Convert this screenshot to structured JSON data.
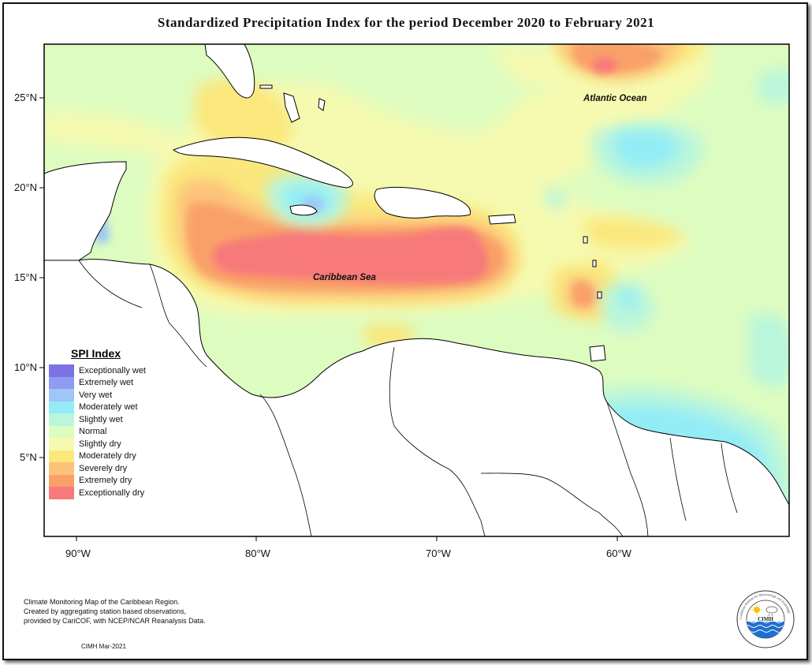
{
  "title": "Standardized Precipitation Index for the period December 2020 to February 2021",
  "lat_labels": [
    "25°N",
    "20°N",
    "15°N",
    "10°N",
    "5°N"
  ],
  "lon_labels": [
    "90°W",
    "80°W",
    "70°W",
    "60°W"
  ],
  "region_labels": {
    "atlantic": "Atlantic Ocean",
    "caribbean": "Caribbean Sea"
  },
  "legend": {
    "title": "SPI Index",
    "items": [
      {
        "label": "Exceptionally wet",
        "color": "#7b72e3"
      },
      {
        "label": "Extremely wet",
        "color": "#8d9cf0"
      },
      {
        "label": "Very wet",
        "color": "#9fc6f6"
      },
      {
        "label": "Moderately wet",
        "color": "#93ecf6"
      },
      {
        "label": "Slightly wet",
        "color": "#b9f6dc"
      },
      {
        "label": "Normal",
        "color": "#ddfcc0"
      },
      {
        "label": "Slightly dry",
        "color": "#f5fab0"
      },
      {
        "label": "Moderately dry",
        "color": "#fbe77c"
      },
      {
        "label": "Severely dry",
        "color": "#fcc27a"
      },
      {
        "label": "Extremely dry",
        "color": "#f9a068"
      },
      {
        "label": "Exceptionally dry",
        "color": "#f7797a"
      }
    ]
  },
  "footnote": [
    "Climate Monitoring Map of the Caribbean Region.",
    "Created by aggregating station based observations,",
    "provided by CariCOF, with NCEP/NCAR Reanalysis Data."
  ],
  "credit": "CIMH Mar-2021",
  "logo": {
    "text": "CIMH",
    "ring_text": "Caribbean Institute for Meteorology and Hydrology",
    "icons": [
      "sun-icon",
      "cloud-icon",
      "waves-icon"
    ]
  }
}
